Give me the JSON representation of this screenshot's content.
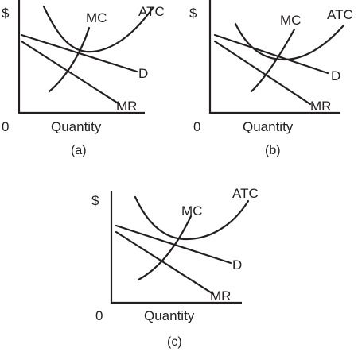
{
  "panels": [
    {
      "id": "a",
      "y_axis_label": "$",
      "origin_label": "0",
      "x_axis_label": "Quantity",
      "caption": "(a)",
      "curves": {
        "mc": "MC",
        "atc": "ATC",
        "d": "D",
        "mr": "MR"
      }
    },
    {
      "id": "b",
      "y_axis_label": "$",
      "origin_label": "0",
      "x_axis_label": "Quantity",
      "caption": "(b)",
      "curves": {
        "mc": "MC",
        "atc": "ATC",
        "d": "D",
        "mr": "MR"
      }
    },
    {
      "id": "c",
      "y_axis_label": "$",
      "origin_label": "0",
      "x_axis_label": "Quantity",
      "caption": "(c)",
      "curves": {
        "mc": "MC",
        "atc": "ATC",
        "d": "D",
        "mr": "MR"
      }
    }
  ]
}
